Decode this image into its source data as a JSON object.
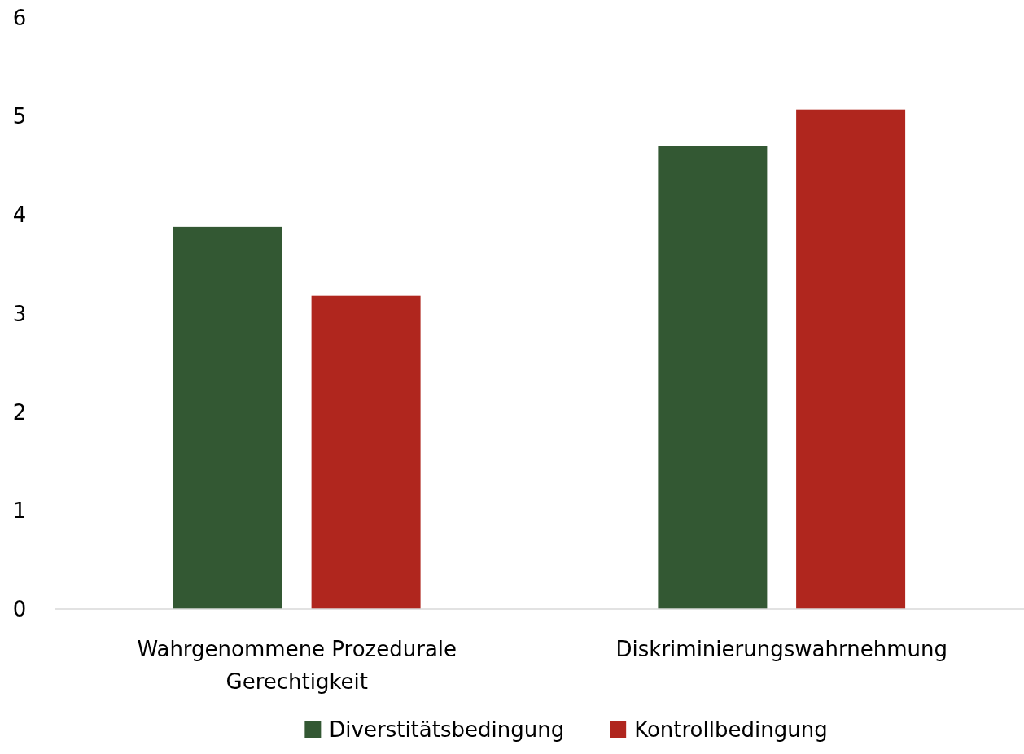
{
  "chart_data": {
    "type": "bar",
    "categories": [
      "Wahrgenommene Prozedurale Gerechtigkeit",
      "Diskriminierungswahrnehmung"
    ],
    "series": [
      {
        "name": "Diverstitätsbedingung",
        "color": "#335833",
        "values": [
          3.88,
          4.7
        ]
      },
      {
        "name": "Kontrollbedingung",
        "color": "#b0261e",
        "values": [
          3.18,
          5.07
        ]
      }
    ],
    "ylim": [
      0,
      6
    ],
    "yticks": [
      0,
      1,
      2,
      3,
      4,
      5,
      6
    ],
    "legend": "bottom"
  }
}
